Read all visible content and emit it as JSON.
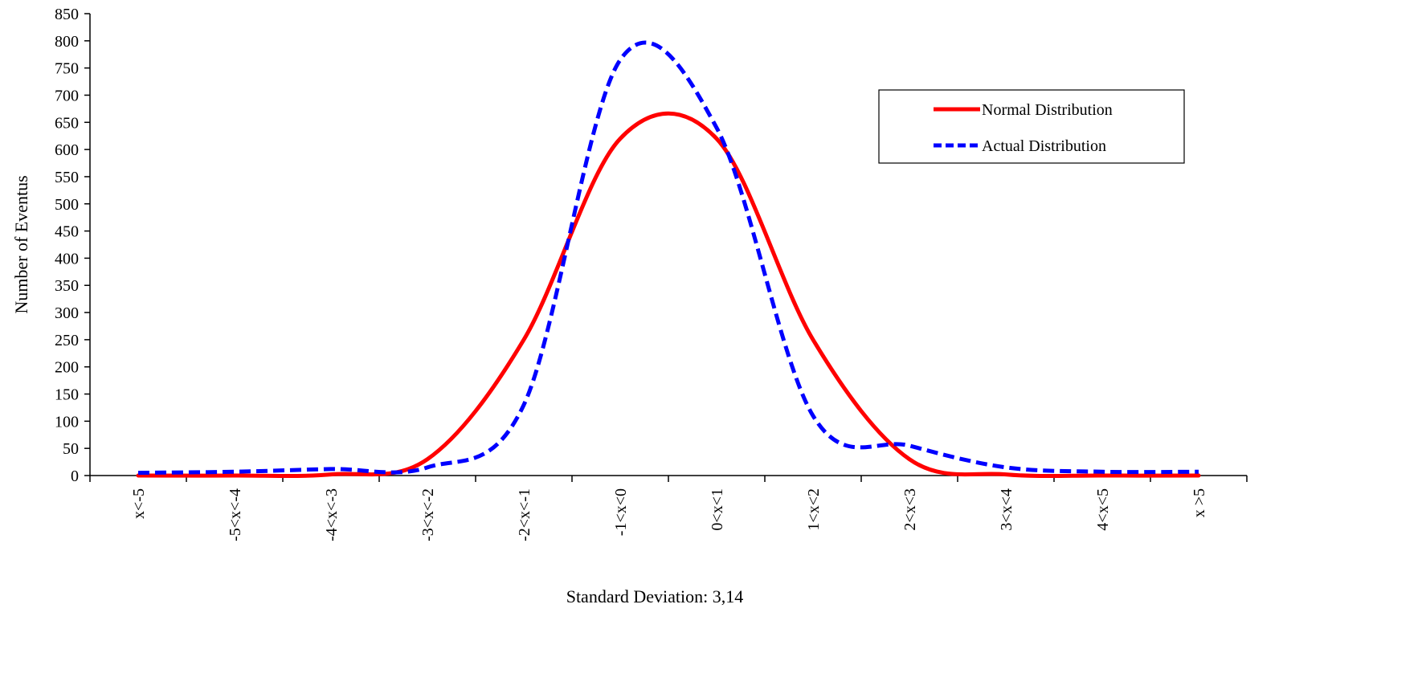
{
  "chart_data": {
    "type": "line",
    "title": "",
    "xlabel": "Standard Deviation: 3,14",
    "ylabel": "Number of Eventus",
    "ylim": [
      0,
      850
    ],
    "yticks": [
      0,
      50,
      100,
      150,
      200,
      250,
      300,
      350,
      400,
      450,
      500,
      550,
      600,
      650,
      700,
      750,
      800,
      850
    ],
    "categories": [
      "x<-5",
      "-5<x<-4",
      "-4<x<-3",
      "-3<x<-2",
      "-2<x<-1",
      "-1<x<0",
      "0<x<1",
      "1<x<2",
      "2<x<3",
      "3<x<4",
      "4<x<5",
      "x >5"
    ],
    "grid": false,
    "legend_position": "top-right",
    "series": [
      {
        "name": "Normal Distribution",
        "color": "#ff0000",
        "style": "solid",
        "values": [
          0,
          0,
          2,
          30,
          250,
          620,
          620,
          250,
          30,
          2,
          0,
          0
        ]
      },
      {
        "name": "Actual Distribution",
        "color": "#0000ff",
        "style": "dashed",
        "values": [
          5,
          7,
          12,
          15,
          130,
          765,
          640,
          110,
          55,
          15,
          7,
          7
        ]
      }
    ]
  }
}
